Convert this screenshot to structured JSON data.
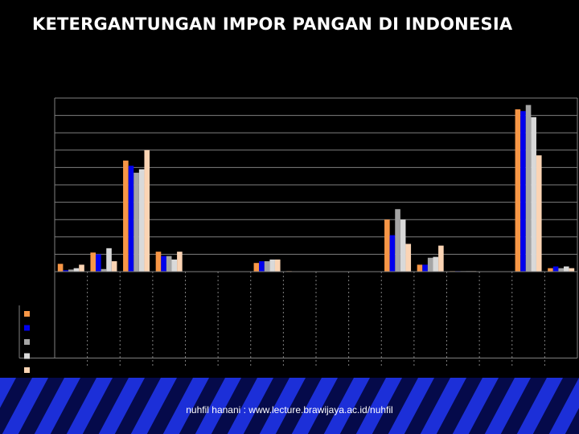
{
  "slide": {
    "title": "KETERGANTUNGAN IMPOR PANGAN DI INDONESIA",
    "footer": "nuhfil hanani : www.lecture.brawijaya.ac.id/nuhfil"
  },
  "colors": {
    "background": "#000000",
    "stripe_dark": "#050a4a",
    "stripe_light": "#1c2fd8",
    "axis": "#7f7f7f"
  },
  "chart_data": {
    "type": "bar",
    "title": "",
    "xlabel": "",
    "ylabel": "",
    "ylim": [
      0,
      100
    ],
    "grid": true,
    "legend": "table-below",
    "categories": [
      "",
      "",
      "",
      "",
      "",
      "",
      "",
      "",
      "",
      "",
      "",
      "",
      "",
      "",
      "",
      ""
    ],
    "series": [
      {
        "color": "#f79646",
        "values": [
          4.5,
          11,
          64,
          11.5,
          0,
          0,
          5,
          0.3,
          0,
          0,
          30,
          4,
          0.3,
          0,
          93.5,
          2
        ]
      },
      {
        "color": "#0000ee",
        "values": [
          0.8,
          10,
          61,
          9,
          0,
          0,
          6,
          0.2,
          0,
          0,
          21,
          4,
          0.3,
          0,
          92.5,
          3
        ]
      },
      {
        "color": "#a5a5a5",
        "values": [
          1.2,
          1.5,
          57,
          9,
          0,
          0,
          6,
          0.2,
          0,
          0,
          36,
          8,
          0.3,
          0,
          96,
          2
        ]
      },
      {
        "color": "#d9d9d9",
        "values": [
          2,
          13.5,
          59,
          7,
          0,
          0,
          7,
          0.2,
          0,
          0,
          30,
          8.5,
          0.3,
          0,
          89,
          3
        ]
      },
      {
        "color": "#fbd4b4",
        "values": [
          4,
          6,
          70,
          11.5,
          0,
          0,
          7,
          0.1,
          0,
          0,
          16,
          15,
          0.3,
          0,
          67,
          2
        ]
      }
    ]
  }
}
